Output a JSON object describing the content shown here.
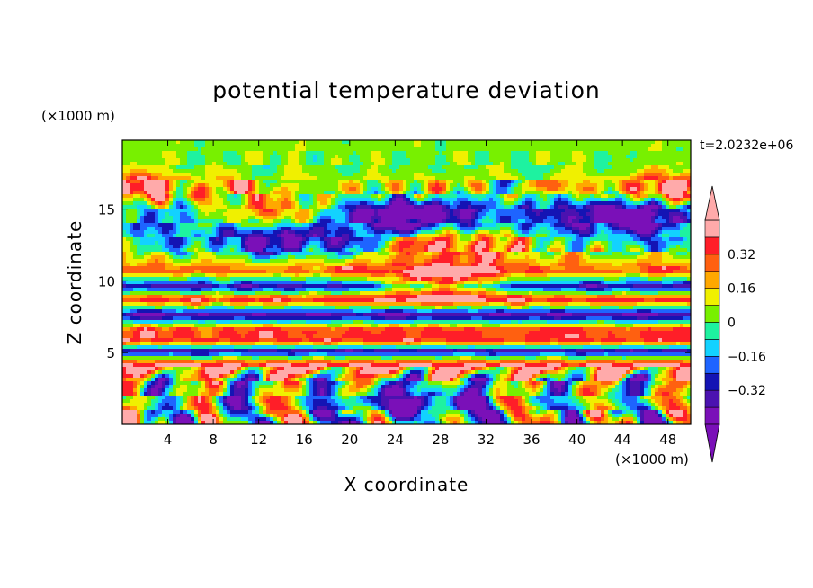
{
  "chart_data": {
    "type": "heatmap",
    "title": "potential temperature deviation",
    "xlabel": "X coordinate",
    "ylabel": "Z coordinate",
    "x_unit": "(×1000 m)",
    "y_unit": "(×1000 m)",
    "time_label": "t=2.0232e+06",
    "xlim": [
      0,
      50
    ],
    "ylim": [
      0,
      19.8
    ],
    "xticks": [
      4,
      8,
      12,
      16,
      20,
      24,
      28,
      32,
      36,
      40,
      44,
      48
    ],
    "yticks": [
      5,
      10,
      15
    ],
    "colorbar": {
      "levels": [
        -0.48,
        -0.4,
        -0.32,
        -0.24,
        -0.16,
        -0.08,
        0,
        0.08,
        0.16,
        0.24,
        0.32,
        0.4
      ],
      "tick_labels": [
        {
          "value": 0.32,
          "label": "0.32"
        },
        {
          "value": 0.16,
          "label": "0.16"
        },
        {
          "value": 0,
          "label": "0"
        },
        {
          "value": -0.16,
          "label": "−0.16"
        },
        {
          "value": -0.32,
          "label": "−0.32"
        }
      ],
      "colors": [
        "#7a10b8",
        "#4b12b0",
        "#1414b4",
        "#1e64ff",
        "#12d2ff",
        "#1ef2a0",
        "#78f000",
        "#f0f000",
        "#ffa800",
        "#ff6010",
        "#ff1e28",
        "#ffaaaa"
      ],
      "extend": "both"
    },
    "layers": [
      {
        "z": 19.2,
        "value": 0.04,
        "amp": 0.08
      },
      {
        "z": 17.8,
        "value": 0.02,
        "amp": 0.2
      },
      {
        "z": 16.5,
        "value": 0.12,
        "amp": 0.4
      },
      {
        "z": 15.0,
        "value": -0.18,
        "amp": 0.45
      },
      {
        "z": 13.5,
        "value": -0.14,
        "amp": 0.45
      },
      {
        "z": 12.0,
        "value": 0.02,
        "amp": 0.4
      },
      {
        "z": 10.7,
        "value": 0.3,
        "amp": 0.15
      },
      {
        "z": 9.6,
        "value": -0.36,
        "amp": 0.14
      },
      {
        "z": 8.7,
        "value": 0.38,
        "amp": 0.18
      },
      {
        "z": 7.6,
        "value": -0.42,
        "amp": 0.12
      },
      {
        "z": 6.6,
        "value": 0.33,
        "amp": 0.12
      },
      {
        "z": 5.8,
        "value": 0.34,
        "amp": 0.12
      },
      {
        "z": 5.1,
        "value": -0.38,
        "amp": 0.14
      },
      {
        "z": 4.2,
        "value": 0.42,
        "amp": 0.12
      },
      {
        "z": 3.0,
        "value": 0.0,
        "amp": 0.5
      },
      {
        "z": 1.0,
        "value": 0.0,
        "amp": 0.55
      }
    ],
    "blobs": [
      {
        "x": 25,
        "z": 14.5,
        "value": -0.45
      },
      {
        "x": 14,
        "z": 12.7,
        "value": -0.4
      },
      {
        "x": 30,
        "z": 12.6,
        "value": 0.46
      },
      {
        "x": 13,
        "z": 14.8,
        "value": 0.44
      },
      {
        "x": 28,
        "z": 9.8,
        "value": 0.45
      },
      {
        "x": 44,
        "z": 14.5,
        "value": -0.4
      },
      {
        "x": 26,
        "z": 1.5,
        "value": -0.44
      },
      {
        "x": 1,
        "z": 16.4,
        "value": 0.4
      },
      {
        "x": 49,
        "z": 16.4,
        "value": 0.38
      }
    ]
  }
}
